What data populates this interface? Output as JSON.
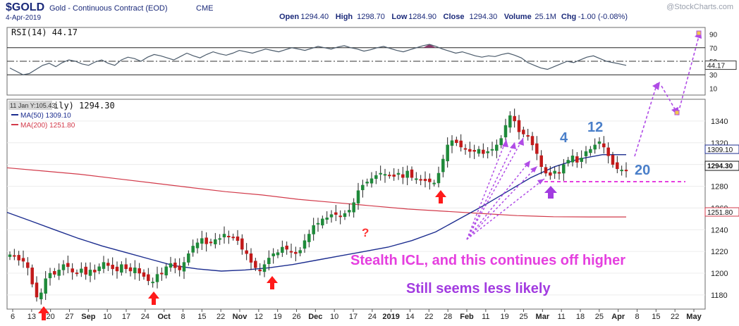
{
  "header": {
    "symbol": "$GOLD",
    "name": "Gold - Continuous Contract (EOD)",
    "exchange": "CME",
    "date": "4-Apr-2019",
    "watermark": "@StockCharts.com",
    "ohlc": [
      {
        "label": "Open",
        "value": "1294.40"
      },
      {
        "label": "High",
        "value": "1298.70"
      },
      {
        "label": "Low",
        "value": "1284.90"
      },
      {
        "label": "Close",
        "value": "1294.30"
      },
      {
        "label": "Volume",
        "value": "25.1M"
      },
      {
        "label": "Chg",
        "value": "-1.00 (-0.08%)"
      }
    ]
  },
  "rsi": {
    "title": "RSI(14) 44.17",
    "value_label": "44.17",
    "value": 44.17,
    "ticks": [
      "90",
      "70",
      "50",
      "30",
      "10"
    ],
    "tick_values": [
      90,
      70,
      50,
      30,
      10
    ],
    "series": [
      40,
      35,
      30,
      32,
      38,
      44,
      47,
      42,
      48,
      52,
      50,
      46,
      44,
      49,
      52,
      47,
      44,
      52,
      56,
      54,
      50,
      56,
      60,
      58,
      55,
      52,
      57,
      62,
      58,
      55,
      60,
      64,
      61,
      59,
      62,
      66,
      64,
      62,
      65,
      68,
      66,
      64,
      67,
      70,
      68,
      66,
      69,
      72,
      70,
      68,
      71,
      73,
      70,
      68,
      65,
      67,
      70,
      72,
      69,
      66,
      64,
      67,
      70,
      73,
      75,
      72,
      68,
      65,
      62,
      64,
      61,
      58,
      56,
      58,
      57,
      60,
      62,
      59,
      55,
      48,
      44,
      40,
      38,
      42,
      46,
      50,
      48,
      52,
      56,
      58,
      54,
      50,
      48,
      46,
      44
    ]
  },
  "price_panel": {
    "title_prefix": "ily) 1294.30",
    "tooltip": "11 Jan Y:105.43",
    "ma50_label": "MA(50) 1309.10",
    "ma200_label": "MA(200) 1251.80",
    "right_tags": {
      "ma50": "1309.10",
      "close": "1294.30",
      "ma200": "1251.80"
    }
  },
  "chart_data": {
    "type": "line",
    "title": "$GOLD Gold - Continuous Contract (EOD) CME",
    "y_ticks": [
      1180,
      1200,
      1220,
      1240,
      1260,
      1280,
      1300,
      1320,
      1340
    ],
    "ylim": [
      1167,
      1360
    ],
    "x_tick_labels": [
      "6",
      "13",
      "20",
      "27",
      "Sep",
      "10",
      "17",
      "24",
      "Oct",
      "8",
      "15",
      "22",
      "Nov",
      "12",
      "19",
      "26",
      "Dec",
      "10",
      "17",
      "24",
      "2019",
      "14",
      "22",
      "28",
      "Feb",
      "11",
      "19",
      "25",
      "Mar",
      "11",
      "18",
      "25",
      "Apr",
      "8",
      "15",
      "22",
      "May"
    ],
    "series": [
      {
        "name": "Gold (Daily)",
        "values": [
          1217,
          1216,
          1212,
          1211,
          1205,
          1190,
          1178,
          1182,
          1195,
          1200,
          1199,
          1203,
          1208,
          1206,
          1201,
          1200,
          1204,
          1199,
          1203,
          1201,
          1206,
          1210,
          1207,
          1204,
          1202,
          1208,
          1204,
          1202,
          1205,
          1200,
          1197,
          1193,
          1192,
          1199,
          1200,
          1206,
          1209,
          1205,
          1203,
          1210,
          1218,
          1225,
          1228,
          1232,
          1227,
          1228,
          1231,
          1232,
          1236,
          1234,
          1233,
          1230,
          1222,
          1218,
          1210,
          1205,
          1202,
          1208,
          1214,
          1218,
          1219,
          1224,
          1222,
          1220,
          1218,
          1221,
          1230,
          1236,
          1244,
          1246,
          1250,
          1251,
          1254,
          1254,
          1252,
          1255,
          1258,
          1265,
          1276,
          1281,
          1284,
          1287,
          1290,
          1292,
          1291,
          1290,
          1289,
          1292,
          1288,
          1294,
          1288,
          1287,
          1286,
          1285,
          1284,
          1283,
          1292,
          1305,
          1318,
          1322,
          1320,
          1316,
          1314,
          1312,
          1312,
          1314,
          1310,
          1312,
          1314,
          1318,
          1324,
          1336,
          1345,
          1340,
          1330,
          1328,
          1326,
          1318,
          1310,
          1298,
          1292,
          1290,
          1294,
          1292,
          1300,
          1304,
          1308,
          1302,
          1306,
          1312,
          1314,
          1318,
          1321,
          1316,
          1308,
          1300,
          1296,
          1295,
          1294
        ]
      },
      {
        "name": "MA(50)",
        "values": [
          1256,
          1248,
          1240,
          1232,
          1225,
          1219,
          1213,
          1207,
          1204,
          1202,
          1203,
          1205,
          1208,
          1212,
          1216,
          1220,
          1224,
          1230,
          1238,
          1250,
          1262,
          1275,
          1288,
          1298,
          1305,
          1309,
          1309
        ]
      },
      {
        "name": "MA(200)",
        "values": [
          1297,
          1294,
          1291,
          1287,
          1283,
          1279,
          1275,
          1272,
          1268,
          1265,
          1262,
          1259,
          1257,
          1255,
          1253,
          1252,
          1251.8,
          1251.8
        ]
      }
    ],
    "annotations": [
      "4",
      "12",
      "20",
      "?",
      "Stealth ICL, and this continues off higher",
      "Still seems less likely"
    ]
  },
  "colors": {
    "candle_up": "#1f8a3a",
    "candle_down": "#c21a1a",
    "ma50": "#1c2d8f",
    "ma200": "#d23a4a",
    "purple": "#b04ce6",
    "magenta": "#e53fdf",
    "count_blue": "#4a7fc9",
    "red_arrow": "#ff1a1a",
    "header_blue": "#1b2a7a"
  }
}
